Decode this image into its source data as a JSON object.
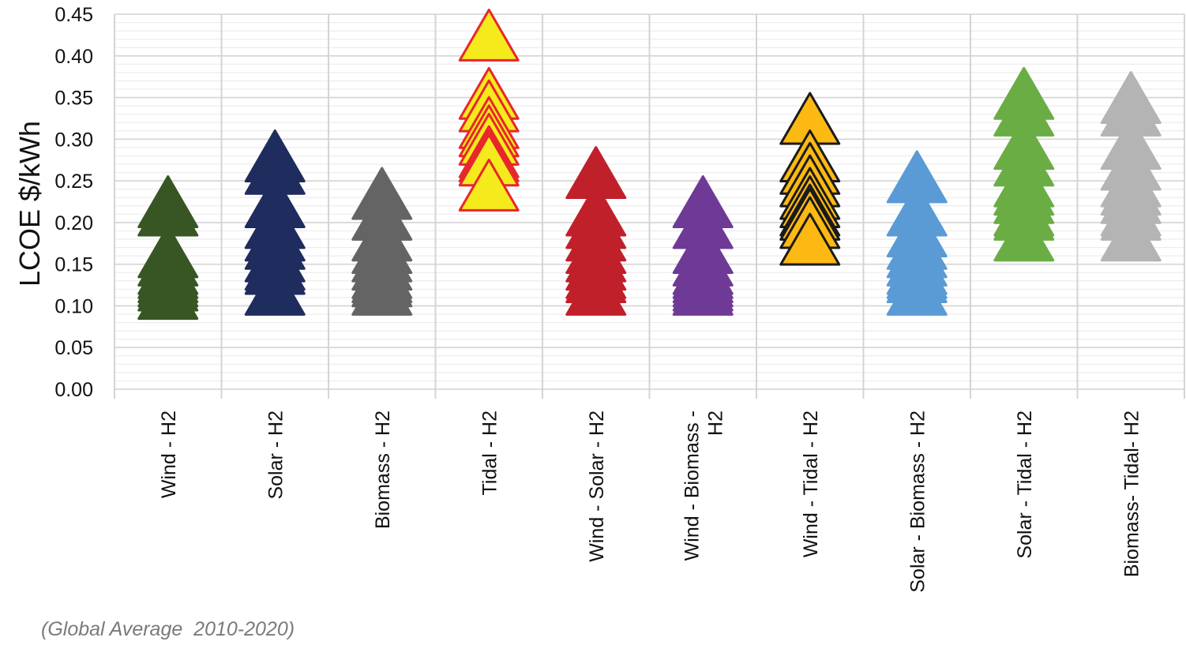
{
  "chart_data": {
    "type": "scatter",
    "marker": "triangle",
    "ylabel": "LCOE $/kWh",
    "xlabel": "",
    "ylim": [
      0,
      0.45
    ],
    "ytick_step": 0.05,
    "yticks": [
      "0.00",
      "0.05",
      "0.10",
      "0.15",
      "0.20",
      "0.25",
      "0.30",
      "0.35",
      "0.40",
      "0.45"
    ],
    "grid": true,
    "annotation": "(Global Average  2010-2020)",
    "categories": [
      {
        "label_lines": [
          "Wind  - H2"
        ],
        "color": "#375623",
        "stroke": "#375623",
        "points": [
          0.225,
          0.215,
          0.165,
          0.155,
          0.145,
          0.14,
          0.135,
          0.13,
          0.125,
          0.115
        ]
      },
      {
        "label_lines": [
          "Solar - H2"
        ],
        "color": "#1f2c5e",
        "stroke": "#1f2c5e",
        "points": [
          0.28,
          0.265,
          0.225,
          0.2,
          0.185,
          0.175,
          0.16,
          0.15,
          0.145,
          0.12
        ]
      },
      {
        "label_lines": [
          "Biomass - H2"
        ],
        "color": "#646464",
        "stroke": "#646464",
        "points": [
          0.235,
          0.21,
          0.185,
          0.17,
          0.16,
          0.15,
          0.14,
          0.135,
          0.13,
          0.12
        ]
      },
      {
        "label_lines": [
          "Tidal - H2"
        ],
        "color": "#f4ea1c",
        "stroke": "#e8262c",
        "points": [
          0.425,
          0.355,
          0.34,
          0.32,
          0.31,
          0.3,
          0.285,
          0.28,
          0.275,
          0.245
        ]
      },
      {
        "label_lines": [
          "Wind  - Solar - H2"
        ],
        "color": "#c0202a",
        "stroke": "#c0202a",
        "points": [
          0.26,
          0.215,
          0.2,
          0.185,
          0.17,
          0.16,
          0.15,
          0.14,
          0.135,
          0.12
        ]
      },
      {
        "label_lines": [
          "Wind  - Biomass -",
          "H2"
        ],
        "color": "#6e3a96",
        "stroke": "#6e3a96",
        "points": [
          0.225,
          0.2,
          0.17,
          0.155,
          0.145,
          0.14,
          0.135,
          0.13,
          0.125,
          0.12
        ]
      },
      {
        "label_lines": [
          "Wind  - Tidal - H2"
        ],
        "color": "#fdb913",
        "stroke": "#1a1a1a",
        "points": [
          0.325,
          0.28,
          0.265,
          0.25,
          0.235,
          0.225,
          0.215,
          0.21,
          0.2,
          0.18
        ]
      },
      {
        "label_lines": [
          "Solar - Biomass - H2"
        ],
        "color": "#5b9bd5",
        "stroke": "#5b9bd5",
        "points": [
          0.255,
          0.215,
          0.19,
          0.175,
          0.165,
          0.155,
          0.145,
          0.14,
          0.135,
          0.12
        ]
      },
      {
        "label_lines": [
          "Solar - Tidal - H2"
        ],
        "color": "#6aad45",
        "stroke": "#6aad45",
        "points": [
          0.355,
          0.335,
          0.295,
          0.275,
          0.25,
          0.24,
          0.23,
          0.215,
          0.21,
          0.185
        ]
      },
      {
        "label_lines": [
          "Biomass- Tidal- H2"
        ],
        "color": "#b4b4b4",
        "stroke": "#b4b4b4",
        "points": [
          0.35,
          0.335,
          0.295,
          0.27,
          0.25,
          0.24,
          0.23,
          0.215,
          0.21,
          0.185
        ]
      }
    ]
  },
  "colors": {
    "grid_major": "#d4d4d4",
    "grid_minor": "#ececec",
    "annotation": "#7a7a7a"
  }
}
